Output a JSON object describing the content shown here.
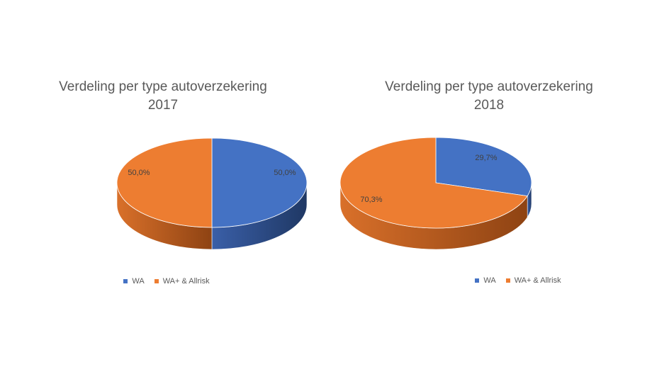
{
  "colors": {
    "wa": "#4472C4",
    "wa_dark": "#1F3864",
    "allrisk": "#ED7D31",
    "allrisk_dark": "#8E4313"
  },
  "chart_data": [
    {
      "type": "pie",
      "title_line1": "Verdeling per type autoverzekering",
      "title_line2": "2017",
      "categories": [
        "WA",
        "WA+ & Allrisk"
      ],
      "values": [
        50.0,
        50.0
      ],
      "data_labels": [
        "50,0%",
        "50,0%"
      ],
      "legend": {
        "position": "bottom",
        "entries": [
          "WA",
          "WA+ & Allrisk"
        ]
      },
      "style": "3d"
    },
    {
      "type": "pie",
      "title_line1": "Verdeling per type autoverzekering",
      "title_line2": "2018",
      "categories": [
        "WA",
        "WA+ & Allrisk"
      ],
      "values": [
        29.7,
        70.3
      ],
      "data_labels": [
        "29,7%",
        "70,3%"
      ],
      "legend": {
        "position": "bottom",
        "entries": [
          "WA",
          "WA+ & Allrisk"
        ]
      },
      "style": "3d"
    }
  ]
}
